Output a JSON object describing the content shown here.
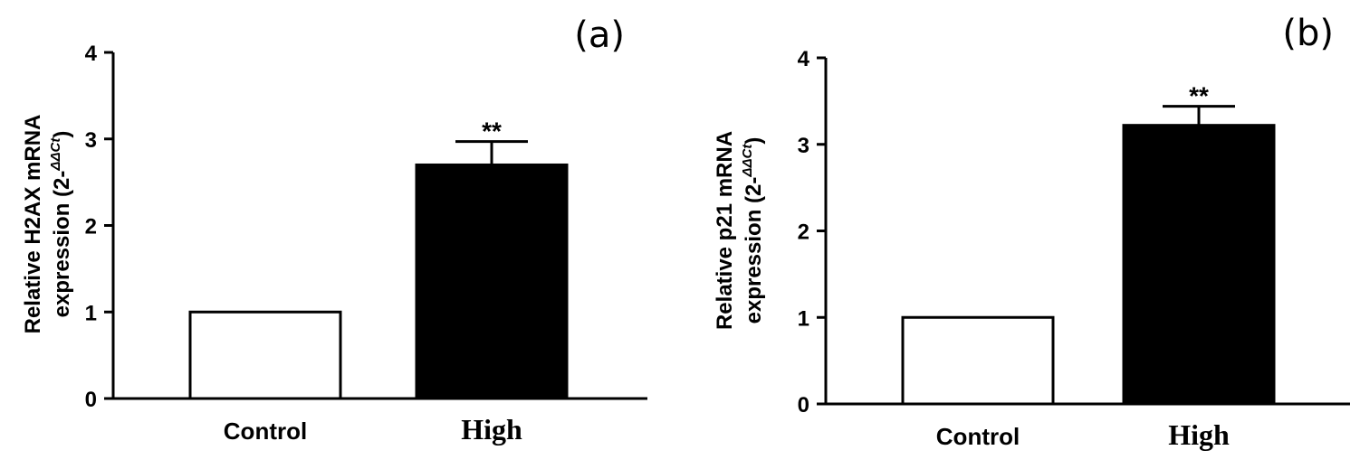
{
  "chart_data": [
    {
      "type": "bar",
      "panel_label": "(a)",
      "ylabel_main": "Relative H2AX mRNA",
      "ylabel_sub": "expression (2-",
      "ylabel_sup": "ΔΔCt",
      "ylabel_close": ")",
      "categories": [
        "Control",
        "High"
      ],
      "values": [
        1.0,
        2.7
      ],
      "errors": [
        0,
        0.27
      ],
      "bar_colors": [
        "#ffffff",
        "#000000"
      ],
      "annotations": [
        "",
        "**"
      ],
      "ylim": [
        0,
        4
      ],
      "yticks": [
        "0",
        "1",
        "2",
        "3",
        "4"
      ],
      "grid": false
    },
    {
      "type": "bar",
      "panel_label": "(b)",
      "ylabel_main": "Relative p21 mRNA",
      "ylabel_sub": "expression (2-",
      "ylabel_sup": "ΔΔCt",
      "ylabel_close": ")",
      "categories": [
        "Control",
        "High"
      ],
      "values": [
        1.0,
        3.22
      ],
      "errors": [
        0,
        0.22
      ],
      "bar_colors": [
        "#ffffff",
        "#000000"
      ],
      "annotations": [
        "",
        "**"
      ],
      "ylim": [
        0,
        4
      ],
      "yticks": [
        "0",
        "1",
        "2",
        "3",
        "4"
      ],
      "grid": false
    }
  ]
}
